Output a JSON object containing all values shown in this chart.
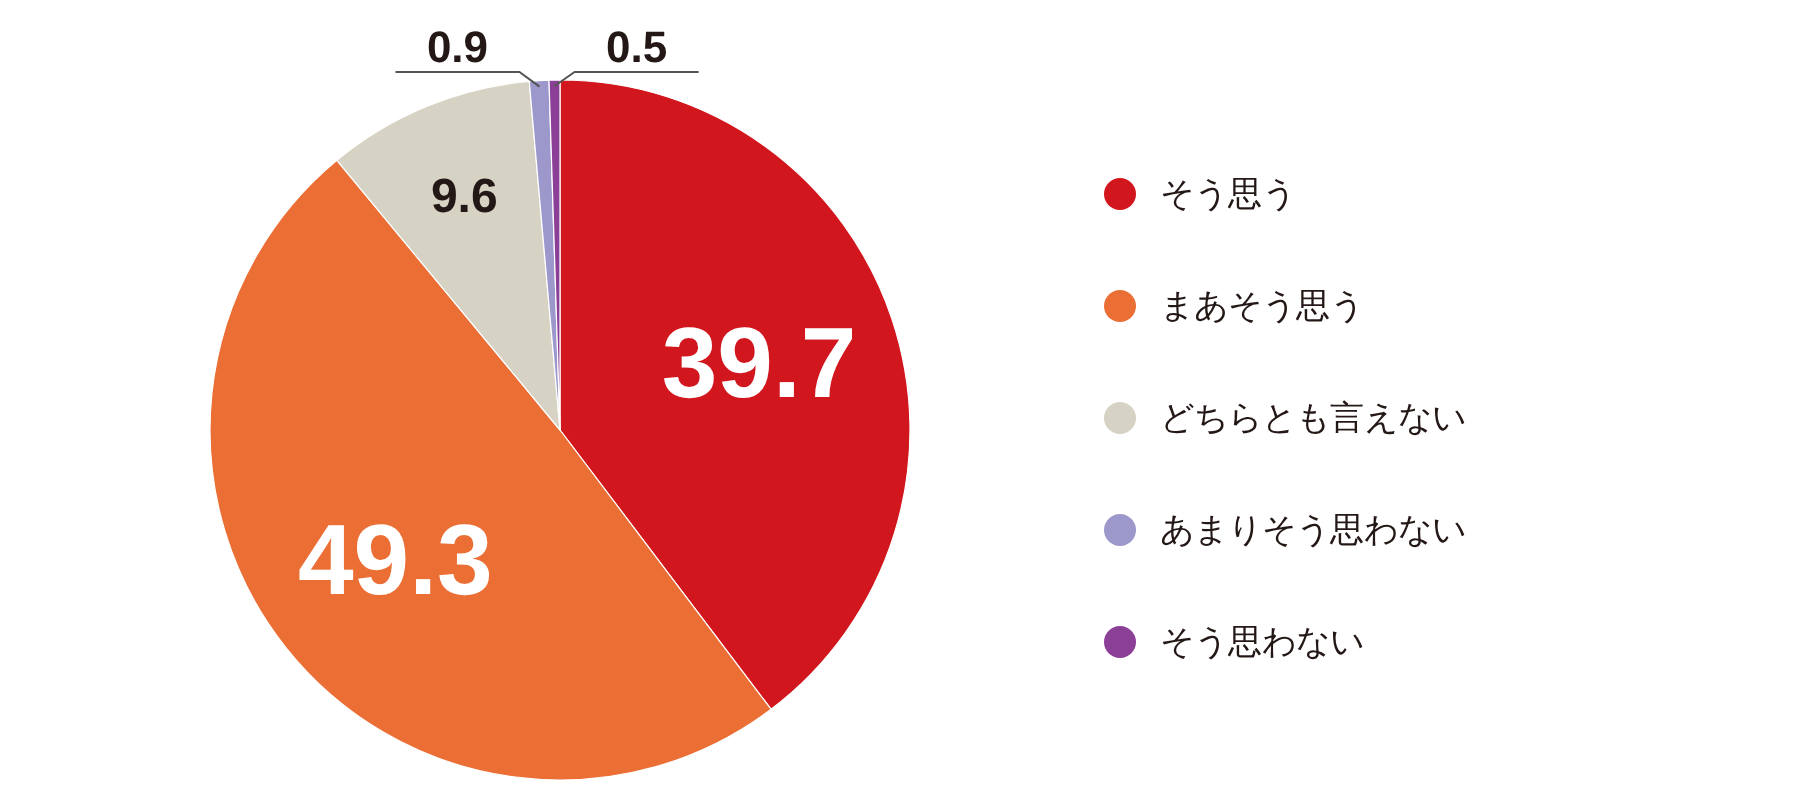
{
  "chart_data": {
    "type": "pie",
    "categories": [
      "そう思う",
      "まあそう思う",
      "どちらとも言えない",
      "あまりそう思わない",
      "そう思わない"
    ],
    "values": [
      39.7,
      49.3,
      9.6,
      0.9,
      0.5
    ],
    "colors": [
      "#d2161e",
      "#eb6e34",
      "#d6d2c4",
      "#9c98cc",
      "#8c3f97"
    ],
    "data_labels": true,
    "legend": "right"
  }
}
